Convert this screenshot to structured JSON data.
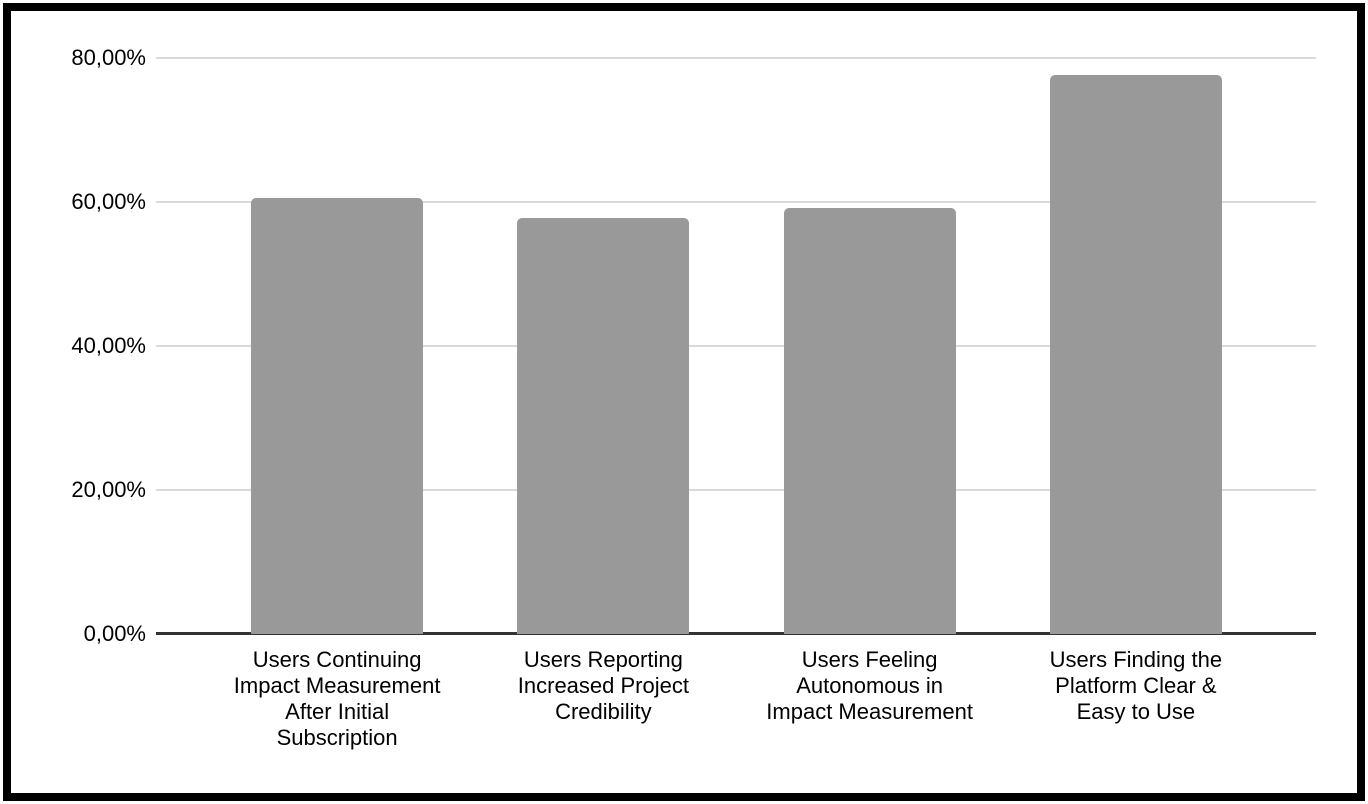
{
  "chart_data": {
    "type": "bar",
    "title": "",
    "xlabel": "",
    "ylabel": "",
    "categories": [
      "Users Continuing\nImpact Measurement\nAfter Initial\nSubscription",
      "Users Reporting\nIncreased Project\nCredibility",
      "Users Feeling\nAutonomous in\nImpact Measurement",
      "Users Finding the\nPlatform Clear &\nEasy to Use"
    ],
    "values": [
      60.5,
      57.8,
      59.2,
      77.7
    ],
    "unit": "%",
    "ylim": [
      0,
      80
    ],
    "y_ticks": [
      {
        "value": 80,
        "label": "80,00%"
      },
      {
        "value": 60,
        "label": "60,00%"
      },
      {
        "value": 40,
        "label": "40,00%"
      },
      {
        "value": 20,
        "label": "20,00%"
      },
      {
        "value": 0,
        "label": "0,00%"
      }
    ],
    "grid": true,
    "legend": false,
    "colors": {
      "bar": "#999999",
      "gridline": "#d9d9d9",
      "axis_line": "#333333",
      "text": "#000000",
      "frame_border": "#000000",
      "background": "#ffffff"
    }
  }
}
